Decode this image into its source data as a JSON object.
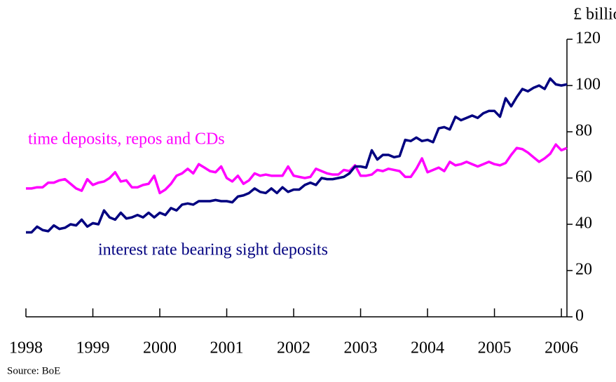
{
  "chart_data": {
    "type": "line",
    "y_label": "£ billion",
    "source": "Source: BoE",
    "x": [
      1998,
      1998.083,
      1998.167,
      1998.25,
      1998.333,
      1998.417,
      1998.5,
      1998.583,
      1998.667,
      1998.75,
      1998.833,
      1998.917,
      1999,
      1999.083,
      1999.167,
      1999.25,
      1999.333,
      1999.417,
      1999.5,
      1999.583,
      1999.667,
      1999.75,
      1999.833,
      1999.917,
      2000,
      2000.083,
      2000.167,
      2000.25,
      2000.333,
      2000.417,
      2000.5,
      2000.583,
      2000.667,
      2000.75,
      2000.833,
      2000.917,
      2001,
      2001.083,
      2001.167,
      2001.25,
      2001.333,
      2001.417,
      2001.5,
      2001.583,
      2001.667,
      2001.75,
      2001.833,
      2001.917,
      2002,
      2002.083,
      2002.167,
      2002.25,
      2002.333,
      2002.417,
      2002.5,
      2002.583,
      2002.667,
      2002.75,
      2002.833,
      2002.917,
      2003,
      2003.083,
      2003.167,
      2003.25,
      2003.333,
      2003.417,
      2003.5,
      2003.583,
      2003.667,
      2003.75,
      2003.833,
      2003.917,
      2004,
      2004.083,
      2004.167,
      2004.25,
      2004.333,
      2004.417,
      2004.5,
      2004.583,
      2004.667,
      2004.75,
      2004.833,
      2004.917,
      2005,
      2005.083,
      2005.167,
      2005.25,
      2005.333,
      2005.417,
      2005.5,
      2005.583,
      2005.667,
      2005.75,
      2005.833,
      2005.917,
      2006,
      2006.083
    ],
    "series": [
      {
        "name": "time deposits, repos and CDs",
        "color": "#ff00ff",
        "values": [
          55.5,
          55.5,
          56,
          56,
          58,
          58,
          59,
          59.5,
          57.5,
          55.5,
          54.5,
          59.5,
          57,
          58,
          58.5,
          60,
          62.5,
          58.5,
          59,
          56,
          56,
          57,
          57.5,
          61,
          53.5,
          55,
          57.5,
          61,
          62,
          64,
          62,
          66,
          64.5,
          63,
          62.5,
          65,
          60,
          58.5,
          61,
          57.5,
          59,
          62,
          61,
          61.5,
          61,
          61,
          61,
          65,
          61,
          60.5,
          60,
          60.5,
          64,
          63,
          62,
          61.5,
          61.5,
          63.5,
          63,
          65.5,
          61,
          61,
          61.5,
          63.5,
          63,
          64,
          63.5,
          63,
          60.5,
          60.5,
          64,
          68.5,
          62.5,
          63.5,
          64.5,
          63,
          67,
          65.5,
          66,
          67,
          66,
          65,
          66,
          67,
          66,
          65.5,
          66.5,
          70,
          73,
          72.5,
          71,
          69,
          67,
          68.5,
          70.5,
          74.5,
          72,
          73
        ]
      },
      {
        "name": "interest rate bearing sight deposits",
        "color": "#000080",
        "values": [
          36.5,
          36.5,
          39,
          37.5,
          37,
          39.5,
          38,
          38.5,
          40,
          39.5,
          42,
          39,
          40.5,
          40,
          46,
          43,
          42,
          45,
          42.5,
          43,
          44,
          43,
          45,
          43,
          45,
          44,
          47,
          46,
          48.5,
          49,
          48.5,
          50,
          50,
          50,
          50.5,
          50,
          50,
          49.5,
          52,
          52.5,
          53.5,
          55.5,
          54,
          53.5,
          55.5,
          53.5,
          56,
          54,
          55,
          55,
          57,
          58,
          57,
          60,
          59.5,
          59.5,
          60,
          60.5,
          62,
          65,
          65,
          64.5,
          72,
          68,
          70,
          70,
          69,
          69.5,
          76.5,
          76,
          77.5,
          76,
          76.5,
          75.5,
          81.5,
          82,
          81,
          86.5,
          85,
          86,
          87,
          86,
          88,
          89,
          89,
          86.5,
          94.5,
          91,
          95,
          98.5,
          97.5,
          99,
          100,
          98.5,
          103,
          100.5,
          100,
          100.5
        ]
      }
    ],
    "xlim": [
      1998,
      2006.083
    ],
    "xticks": [
      1998,
      1999,
      2000,
      2001,
      2002,
      2003,
      2004,
      2005,
      2006
    ],
    "ylim": [
      0,
      120
    ],
    "yticks": [
      0,
      20,
      40,
      60,
      80,
      100,
      120
    ],
    "grid": false
  }
}
